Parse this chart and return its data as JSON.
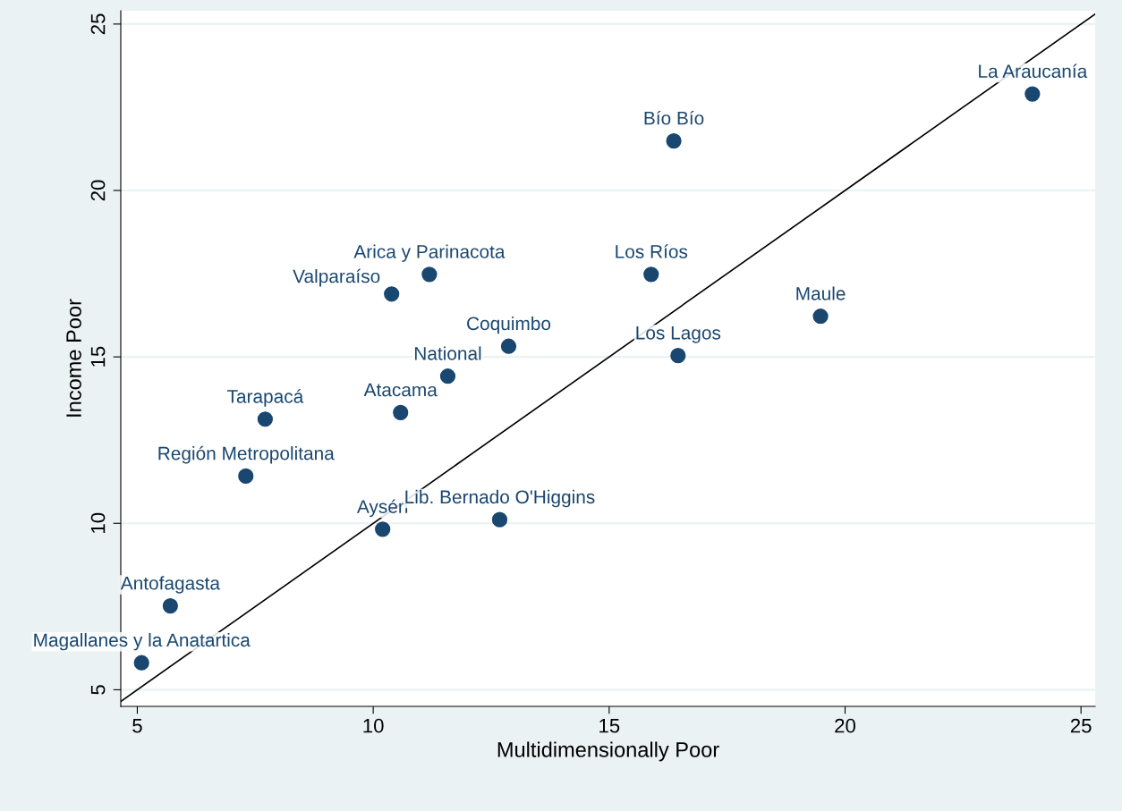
{
  "chart_data": {
    "type": "scatter",
    "xlabel": "Multidimensionally Poor",
    "ylabel": "Income Poor",
    "xlim": [
      4.65,
      25.3
    ],
    "ylim": [
      4.5,
      25.4
    ],
    "xticks": [
      5,
      10,
      15,
      20,
      25
    ],
    "yticks": [
      5,
      10,
      15,
      20,
      25
    ],
    "grid": "y",
    "marker": "circle",
    "legend": false,
    "series": [
      {
        "color": "#1a476f",
        "x": [
          5.09,
          5.7,
          7.3,
          7.71,
          10.2,
          10.39,
          10.58,
          11.19,
          11.58,
          12.68,
          12.87,
          15.89,
          16.37,
          16.46,
          19.48,
          23.97
        ],
        "values": [
          5.81,
          7.52,
          11.42,
          13.13,
          9.82,
          16.89,
          13.33,
          17.48,
          14.42,
          10.11,
          15.32,
          17.48,
          21.49,
          15.04,
          16.22,
          22.9
        ]
      },
      {
        "type": "line",
        "marker": "none",
        "color": "#000000",
        "x": [
          4.65,
          25.3
        ],
        "values": [
          4.65,
          25.3
        ]
      }
    ],
    "annotations": [
      {
        "text": "Magallanes y la Anatartica",
        "x": 5.09,
        "y": 5.81
      },
      {
        "text": "Antofagasta",
        "x": 5.7,
        "y": 7.52
      },
      {
        "text": "Región Metropolitana",
        "x": 7.3,
        "y": 11.42
      },
      {
        "text": "Tarapacá",
        "x": 7.71,
        "y": 13.13
      },
      {
        "text": "Aysén",
        "x": 10.2,
        "y": 9.82
      },
      {
        "text": "Valparaíso",
        "x": 10.39,
        "y": 16.89
      },
      {
        "text": "Atacama",
        "x": 10.58,
        "y": 13.33
      },
      {
        "text": "Arica y Parinacota",
        "x": 11.19,
        "y": 17.48
      },
      {
        "text": "National",
        "x": 11.58,
        "y": 14.42
      },
      {
        "text": "Lib. Bernado O'Higgins",
        "x": 12.68,
        "y": 10.11
      },
      {
        "text": "Coquimbo",
        "x": 12.87,
        "y": 15.32
      },
      {
        "text": "Los Ríos",
        "x": 15.89,
        "y": 17.48
      },
      {
        "text": "Bío Bío",
        "x": 16.37,
        "y": 21.49
      },
      {
        "text": "Los Lagos",
        "x": 16.46,
        "y": 15.04
      },
      {
        "text": "Maule",
        "x": 19.48,
        "y": 16.22
      },
      {
        "text": "La Araucanía",
        "x": 23.97,
        "y": 22.9
      }
    ]
  }
}
